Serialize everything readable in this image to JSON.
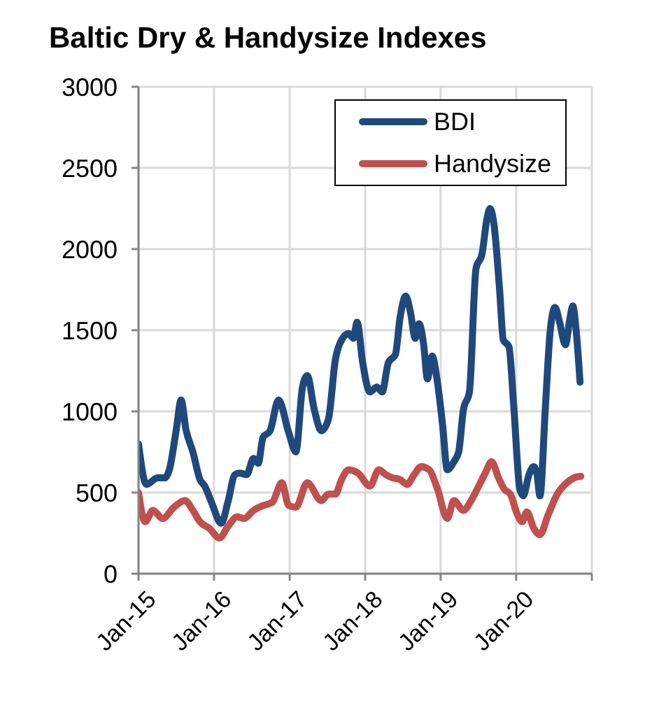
{
  "chart_data": {
    "type": "line",
    "title": "Baltic Dry & Handysize Indexes",
    "xlim": [
      "2015-01-01",
      "2021-01-01"
    ],
    "xticks": [
      {
        "value": "2015-01",
        "label": "Jan-15"
      },
      {
        "value": "2016-01",
        "label": "Jan-16"
      },
      {
        "value": "2017-01",
        "label": "Jan-17"
      },
      {
        "value": "2018-01",
        "label": "Jan-18"
      },
      {
        "value": "2019-01",
        "label": "Jan-19"
      },
      {
        "value": "2020-01",
        "label": "Jan-20"
      },
      {
        "value": "2021-01",
        "label": null
      }
    ],
    "ylim": [
      0,
      3000
    ],
    "yticks": [
      0,
      500,
      1000,
      1500,
      2000,
      2500,
      3000
    ],
    "grid": true,
    "legend": "top right",
    "marker": "none",
    "line_style": "solid",
    "series": [
      {
        "name": "BDI",
        "color": "#1f497d",
        "x": [
          "2015-01-01",
          "2015-02-08",
          "2015-04-04",
          "2015-05-08",
          "2015-05-30",
          "2015-07-03",
          "2015-07-26",
          "2015-08-18",
          "2015-09-21",
          "2015-10-25",
          "2015-11-17",
          "2015-12-20",
          "2016-02-05",
          "2016-03-08",
          "2016-04-11",
          "2016-05-03",
          "2016-06-07",
          "2016-07-10",
          "2016-08-02",
          "2016-08-25",
          "2016-09-28",
          "2016-11-08",
          "2016-12-27",
          "2017-01-31",
          "2017-03-04",
          "2017-03-27",
          "2017-04-30",
          "2017-06-03",
          "2017-07-07",
          "2017-08-10",
          "2017-09-09",
          "2017-10-13",
          "2017-11-05",
          "2017-11-23",
          "2017-12-20",
          "2018-01-24",
          "2018-02-27",
          "2018-03-24",
          "2018-04-23",
          "2018-05-27",
          "2018-06-19",
          "2018-07-16",
          "2018-08-08",
          "2018-08-31",
          "2018-09-18",
          "2018-10-11",
          "2018-10-29",
          "2018-11-21",
          "2018-12-13",
          "2019-01-10",
          "2019-02-02",
          "2019-03-06",
          "2019-03-29",
          "2019-04-21",
          "2019-05-20",
          "2019-06-21",
          "2019-07-20",
          "2019-08-12",
          "2019-08-28",
          "2019-09-16",
          "2019-10-13",
          "2019-10-31",
          "2019-11-27",
          "2019-12-20",
          "2020-01-19",
          "2020-02-04",
          "2020-03-03",
          "2020-03-26",
          "2020-04-11",
          "2020-04-25",
          "2020-05-22",
          "2020-06-14",
          "2020-07-07",
          "2020-07-29",
          "2020-08-26",
          "2020-09-18",
          "2020-10-01",
          "2020-10-17",
          "2020-11-05"
        ],
        "values": [
          800,
          550,
          590,
          590,
          640,
          890,
          1070,
          890,
          750,
          580,
          540,
          440,
          310,
          440,
          610,
          620,
          610,
          710,
          680,
          840,
          880,
          1070,
          870,
          750,
          1150,
          1220,
          1010,
          880,
          950,
          1320,
          1440,
          1480,
          1450,
          1550,
          1300,
          1120,
          1150,
          1120,
          1300,
          1350,
          1580,
          1710,
          1610,
          1450,
          1540,
          1410,
          1200,
          1340,
          1210,
          920,
          640,
          690,
          750,
          1010,
          1120,
          1880,
          1970,
          2180,
          2250,
          2150,
          1750,
          1440,
          1400,
          1040,
          520,
          480,
          610,
          660,
          610,
          480,
          1040,
          1500,
          1640,
          1550,
          1410,
          1580,
          1650,
          1500,
          1180
        ]
      },
      {
        "name": "Handysize",
        "color": "#c0504d",
        "x": [
          "2015-01-01",
          "2015-02-02",
          "2015-03-12",
          "2015-04-27",
          "2015-06-22",
          "2015-08-14",
          "2015-09-21",
          "2015-10-25",
          "2015-12-09",
          "2016-01-28",
          "2016-03-08",
          "2016-04-22",
          "2016-05-26",
          "2016-07-10",
          "2016-08-25",
          "2016-10-09",
          "2016-11-24",
          "2016-12-27",
          "2017-01-31",
          "2017-03-27",
          "2017-06-03",
          "2017-07-07",
          "2017-08-10",
          "2017-09-09",
          "2017-10-13",
          "2017-11-27",
          "2018-01-24",
          "2018-03-08",
          "2018-04-11",
          "2018-05-15",
          "2018-06-19",
          "2018-07-22",
          "2018-08-26",
          "2018-09-29",
          "2018-11-07",
          "2018-12-17",
          "2019-02-02",
          "2019-03-06",
          "2019-04-21",
          "2019-05-28",
          "2019-07-04",
          "2019-08-05",
          "2019-09-04",
          "2019-10-08",
          "2019-11-05",
          "2019-12-04",
          "2020-01-08",
          "2020-01-30",
          "2020-02-22",
          "2020-03-26",
          "2020-04-25",
          "2020-06-03",
          "2020-07-18",
          "2020-09-02",
          "2020-10-06",
          "2020-11-09"
        ],
        "values": [
          500,
          320,
          390,
          340,
          410,
          450,
          390,
          320,
          280,
          220,
          290,
          350,
          340,
          390,
          420,
          440,
          560,
          420,
          410,
          560,
          450,
          490,
          490,
          580,
          640,
          620,
          540,
          640,
          610,
          590,
          580,
          550,
          610,
          660,
          640,
          520,
          340,
          450,
          390,
          450,
          540,
          620,
          690,
          590,
          520,
          490,
          360,
          320,
          380,
          280,
          240,
          360,
          490,
          560,
          590,
          600
        ]
      }
    ]
  }
}
